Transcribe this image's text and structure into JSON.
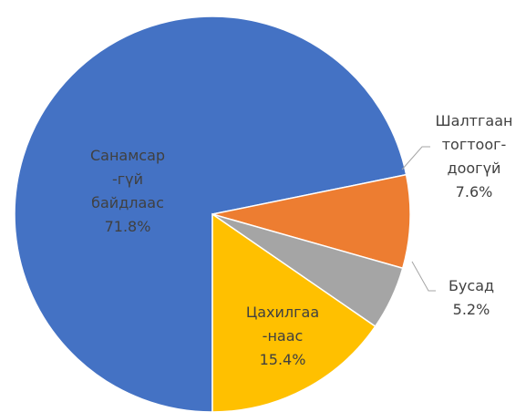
{
  "chart_data": {
    "type": "pie",
    "categories": [
      "Санамсар\n-гүй\nбайдлаас",
      "Шалтгаан\nтогтоог-\nдоогүй",
      "Бусад",
      "Цахилгаа\n-наас"
    ],
    "values": [
      71.8,
      7.6,
      5.2,
      15.4
    ],
    "value_labels": [
      "71.8%",
      "7.6%",
      "5.2%",
      "15.4%"
    ],
    "colors": [
      "#4472c4",
      "#ed7d31",
      "#a5a5a5",
      "#ffc000"
    ]
  }
}
